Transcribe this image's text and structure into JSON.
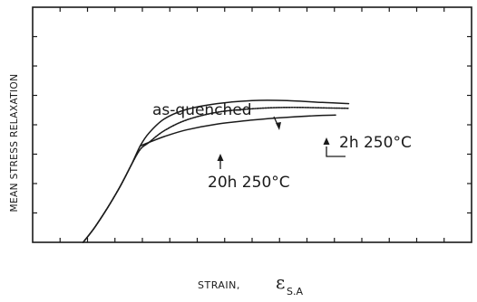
{
  "chart_data": {
    "type": "line",
    "title": "",
    "xlabel": "STRAIN,",
    "xlabel_symbol": "ε",
    "xlabel_subscript": "S.A",
    "ylabel": "MEAN STRESS RELAXATION",
    "xlim": [
      0,
      1
    ],
    "ylim": [
      0,
      1
    ],
    "x_tick_count": 17,
    "y_tick_count": 9,
    "grid": false,
    "legend": "none",
    "series": [
      {
        "name": "as-quenched",
        "style": "solid",
        "points": [
          [
            0.115,
            0.0
          ],
          [
            0.14,
            0.06
          ],
          [
            0.17,
            0.145
          ],
          [
            0.2,
            0.24
          ],
          [
            0.225,
            0.33
          ],
          [
            0.245,
            0.41
          ],
          [
            0.265,
            0.465
          ],
          [
            0.3,
            0.525
          ],
          [
            0.35,
            0.565
          ],
          [
            0.42,
            0.59
          ],
          [
            0.5,
            0.603
          ],
          [
            0.58,
            0.603
          ],
          [
            0.66,
            0.595
          ],
          [
            0.72,
            0.59
          ]
        ]
      },
      {
        "name": "2h 250°C",
        "style": "dotted",
        "points": [
          [
            0.115,
            0.0
          ],
          [
            0.14,
            0.06
          ],
          [
            0.17,
            0.145
          ],
          [
            0.2,
            0.24
          ],
          [
            0.225,
            0.33
          ],
          [
            0.245,
            0.395
          ],
          [
            0.265,
            0.425
          ],
          [
            0.3,
            0.475
          ],
          [
            0.35,
            0.52
          ],
          [
            0.42,
            0.553
          ],
          [
            0.5,
            0.568
          ],
          [
            0.58,
            0.574
          ],
          [
            0.66,
            0.572
          ],
          [
            0.72,
            0.57
          ]
        ]
      },
      {
        "name": "20h 250°C",
        "style": "solid",
        "points": [
          [
            0.245,
            0.41
          ],
          [
            0.265,
            0.425
          ],
          [
            0.3,
            0.45
          ],
          [
            0.35,
            0.478
          ],
          [
            0.42,
            0.503
          ],
          [
            0.5,
            0.52
          ],
          [
            0.58,
            0.532
          ],
          [
            0.66,
            0.54
          ],
          [
            0.69,
            0.541
          ]
        ]
      }
    ],
    "annotations": [
      {
        "text": "as-quenched",
        "series": "as-quenched"
      },
      {
        "text": "2h 250°C",
        "series": "2h 250°C"
      },
      {
        "text": "20h 250°C",
        "series": "20h 250°C"
      }
    ]
  }
}
